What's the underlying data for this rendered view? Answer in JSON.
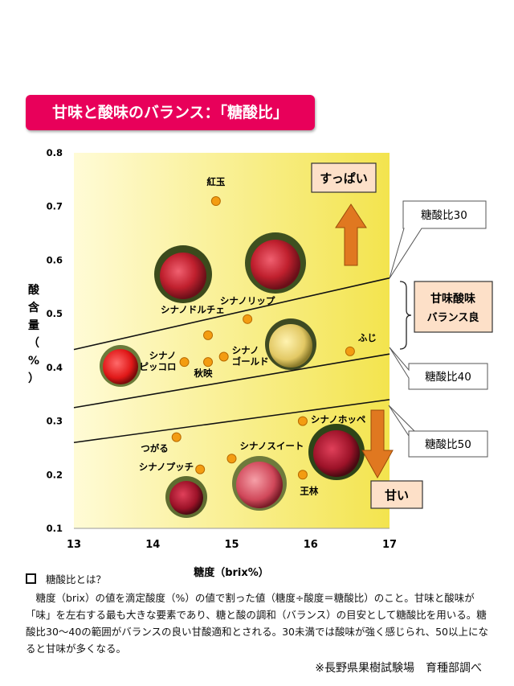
{
  "title": "甘味と酸味のバランス：「糖酸比」",
  "chart_data": {
    "type": "scatter",
    "title": "甘味と酸味のバランス：「糖酸比」",
    "xlabel": "糖度（brix%）",
    "ylabel": "酸含量（%）",
    "xlim": [
      13,
      17
    ],
    "ylim": [
      0.1,
      0.8
    ],
    "xticks": [
      "13",
      "14",
      "15",
      "16",
      "17"
    ],
    "yticks": [
      "0.1",
      "0.2",
      "0.3",
      "0.4",
      "0.5",
      "0.6",
      "0.7",
      "0.8"
    ],
    "points": [
      {
        "label": "紅玉",
        "x": 14.8,
        "y": 0.71
      },
      {
        "label": "シナノリップ",
        "x": 15.2,
        "y": 0.49
      },
      {
        "label": "",
        "x": 14.7,
        "y": 0.46
      },
      {
        "label": "シナノ ピッコロ",
        "x": 14.4,
        "y": 0.41
      },
      {
        "label": "秋映",
        "x": 14.7,
        "y": 0.41
      },
      {
        "label": "シナノ ゴールド",
        "x": 14.9,
        "y": 0.42
      },
      {
        "label": "ふじ",
        "x": 16.5,
        "y": 0.43
      },
      {
        "label": "シナノホッペ",
        "x": 15.9,
        "y": 0.3
      },
      {
        "label": "つがる",
        "x": 14.3,
        "y": 0.27
      },
      {
        "label": "シナノスイート",
        "x": 15.0,
        "y": 0.23
      },
      {
        "label": "シナノプッチ",
        "x": 14.6,
        "y": 0.21
      },
      {
        "label": "王林",
        "x": 15.9,
        "y": 0.2
      }
    ],
    "ratio_lines": [
      {
        "label": "糖酸比30",
        "ratio": 30
      },
      {
        "label": "糖酸比40",
        "ratio": 40
      },
      {
        "label": "糖酸比50",
        "ratio": 50
      }
    ],
    "annotations": {
      "sour": "すっぱい",
      "sweet": "甘い",
      "balance": [
        "甘味酸味",
        "バランス良"
      ],
      "extra_labels": [
        "シナノドルチェ"
      ]
    },
    "colors": {
      "plot_bg": "#fff7b8",
      "plot_bg_edge": "#f2e24a",
      "point": "#f39c12",
      "arrow": "#e07820",
      "box_fill": "#fde0c8",
      "title_bg": "#e8005a"
    }
  },
  "note": {
    "heading": "糖酸比とは？",
    "body": "糖度（brix）の値を滴定酸度（%）の値で割った値（糖度÷酸度＝糖酸比）のこと。甘味と酸味が「味」を左右する最も大きな要素であり、糖と酸の調和（バランス）の目安として糖酸比を用いる。糖酸比30～40の範囲がバランスの良い甘酸適和とされる。30未満では酸味が強く感じられ、50以上になると甘味が多くなる。",
    "credit": "※長野県果樹試験場　育種部調べ"
  }
}
